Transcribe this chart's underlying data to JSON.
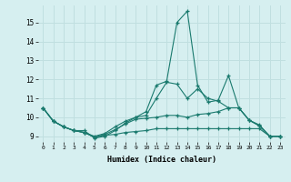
{
  "xlabel": "Humidex (Indice chaleur)",
  "background_color": "#d6eff0",
  "grid_color": "#c0dfe0",
  "line_color": "#1a7a6e",
  "x_ticks": [
    0,
    1,
    2,
    3,
    4,
    5,
    6,
    7,
    8,
    9,
    10,
    11,
    12,
    13,
    14,
    15,
    16,
    17,
    18,
    19,
    20,
    21,
    22,
    23
  ],
  "y_ticks": [
    9,
    10,
    11,
    12,
    13,
    14,
    15
  ],
  "ylim": [
    8.7,
    15.9
  ],
  "xlim": [
    -0.5,
    23.5
  ],
  "series": [
    [
      10.5,
      9.8,
      9.5,
      9.3,
      9.3,
      8.9,
      9.0,
      9.3,
      9.7,
      10.0,
      10.3,
      11.7,
      11.9,
      15.0,
      15.6,
      11.7,
      10.8,
      10.9,
      12.2,
      10.5,
      9.85,
      9.6,
      9.0,
      9.0
    ],
    [
      10.5,
      9.8,
      9.5,
      9.3,
      9.2,
      9.0,
      9.15,
      9.5,
      9.8,
      10.0,
      10.1,
      11.0,
      11.85,
      11.75,
      11.0,
      11.5,
      11.0,
      10.85,
      10.5,
      10.5,
      9.85,
      9.55,
      9.0,
      9.0
    ],
    [
      10.5,
      9.8,
      9.5,
      9.3,
      9.2,
      8.95,
      9.1,
      9.35,
      9.65,
      9.9,
      9.95,
      10.0,
      10.1,
      10.1,
      10.0,
      10.15,
      10.2,
      10.3,
      10.5,
      10.5,
      9.85,
      9.55,
      9.0,
      9.0
    ],
    [
      10.5,
      9.8,
      9.5,
      9.3,
      9.2,
      8.95,
      9.05,
      9.1,
      9.2,
      9.25,
      9.3,
      9.4,
      9.4,
      9.4,
      9.4,
      9.4,
      9.4,
      9.4,
      9.4,
      9.4,
      9.4,
      9.4,
      9.0,
      9.0
    ]
  ]
}
